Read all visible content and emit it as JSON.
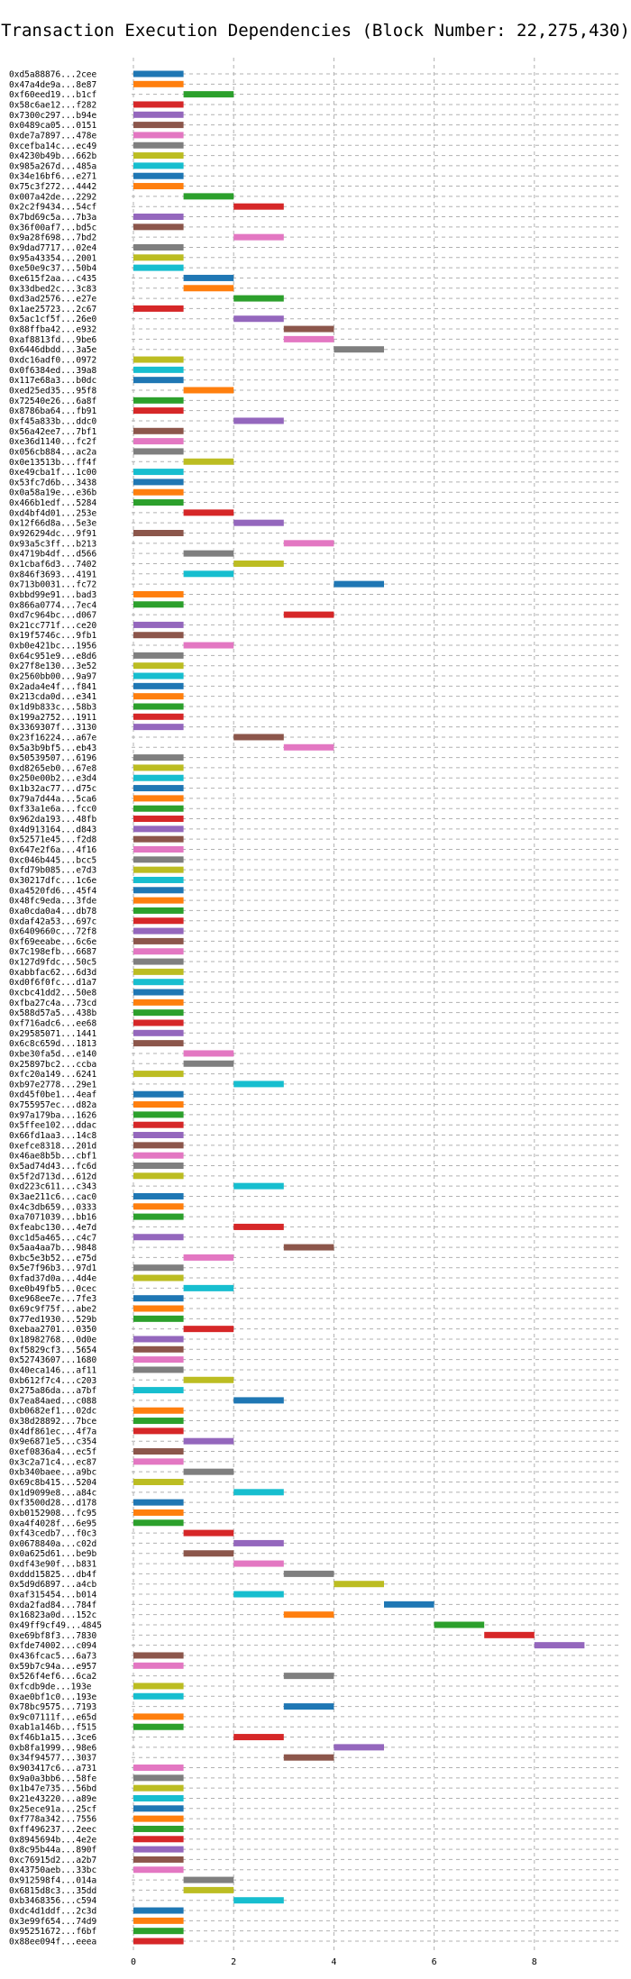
{
  "chart_data": {
    "type": "bar",
    "title": "Transaction Execution Dependencies (Block Number: 22,275,430)",
    "xlabel": "",
    "ylabel": "",
    "xlim": [
      -0.6,
      9.6
    ],
    "xticks": [
      0,
      2,
      4,
      6,
      8
    ],
    "grid": true,
    "palette": [
      "#1f77b4",
      "#ff7f0e",
      "#2ca02c",
      "#d62728",
      "#9467bd",
      "#8c564b",
      "#e377c2",
      "#7f7f7f",
      "#bcbd22",
      "#17becf"
    ],
    "bar_length": 1,
    "transactions": [
      {
        "label": "0xd5a88876...2cee",
        "start": 0
      },
      {
        "label": "0x47a4de9a...8e87",
        "start": 0
      },
      {
        "label": "0xf60eed19...b1cf",
        "start": 1
      },
      {
        "label": "0x58c6ae12...f282",
        "start": 0
      },
      {
        "label": "0x7300c297...b94e",
        "start": 0
      },
      {
        "label": "0x0489ca05...0151",
        "start": 0
      },
      {
        "label": "0xde7a7897...478e",
        "start": 0
      },
      {
        "label": "0xcefba14c...ec49",
        "start": 0
      },
      {
        "label": "0x4230b49b...662b",
        "start": 0
      },
      {
        "label": "0x985a267d...485a",
        "start": 0
      },
      {
        "label": "0x34e16bf6...e271",
        "start": 0
      },
      {
        "label": "0x75c3f272...4442",
        "start": 0
      },
      {
        "label": "0x007a42de...2292",
        "start": 1
      },
      {
        "label": "0x2c2f9434...54cf",
        "start": 2
      },
      {
        "label": "0x7bd69c5a...7b3a",
        "start": 0
      },
      {
        "label": "0x36f00af7...bd5c",
        "start": 0
      },
      {
        "label": "0x9a28f698...7bd2",
        "start": 2
      },
      {
        "label": "0x9dad7717...02e4",
        "start": 0
      },
      {
        "label": "0x95a43354...2001",
        "start": 0
      },
      {
        "label": "0xe50e9c37...50b4",
        "start": 0
      },
      {
        "label": "0xe615f2aa...c435",
        "start": 1
      },
      {
        "label": "0x33dbed2c...3c83",
        "start": 1
      },
      {
        "label": "0xd3ad2576...e27e",
        "start": 2
      },
      {
        "label": "0x1ae25723...2c67",
        "start": 0
      },
      {
        "label": "0x5ac1cf5f...26e0",
        "start": 2
      },
      {
        "label": "0x88ffba42...e932",
        "start": 3
      },
      {
        "label": "0xaf8813fd...9be6",
        "start": 3
      },
      {
        "label": "0x6446dbdd...3a5e",
        "start": 4
      },
      {
        "label": "0xdc16adf0...0972",
        "start": 0
      },
      {
        "label": "0x0f6384ed...39a8",
        "start": 0
      },
      {
        "label": "0x117e68a3...b0dc",
        "start": 0
      },
      {
        "label": "0xed25ed35...95f8",
        "start": 1
      },
      {
        "label": "0x72540e26...6a8f",
        "start": 0
      },
      {
        "label": "0x8786ba64...fb91",
        "start": 0
      },
      {
        "label": "0xf45a833b...ddc0",
        "start": 2
      },
      {
        "label": "0x56a42ee7...7bf1",
        "start": 0
      },
      {
        "label": "0xe36d1140...fc2f",
        "start": 0
      },
      {
        "label": "0x056cb884...ac2a",
        "start": 0
      },
      {
        "label": "0x0e13513b...ff4f",
        "start": 1
      },
      {
        "label": "0xe49cba1f...1c00",
        "start": 0
      },
      {
        "label": "0x53fc7d6b...3438",
        "start": 0
      },
      {
        "label": "0x0a58a19e...e36b",
        "start": 0
      },
      {
        "label": "0x466b1edf...5284",
        "start": 0
      },
      {
        "label": "0xd4bf4d01...253e",
        "start": 1
      },
      {
        "label": "0x12f66d8a...5e3e",
        "start": 2
      },
      {
        "label": "0x926294dc...9f91",
        "start": 0
      },
      {
        "label": "0x93a5c3ff...b213",
        "start": 3
      },
      {
        "label": "0x4719b4df...d566",
        "start": 1
      },
      {
        "label": "0x1cbaf6d3...7402",
        "start": 2
      },
      {
        "label": "0x846f3693...4191",
        "start": 1
      },
      {
        "label": "0x713b0031...fc72",
        "start": 4
      },
      {
        "label": "0xbbd99e91...bad3",
        "start": 0
      },
      {
        "label": "0x866a0774...7ec4",
        "start": 0
      },
      {
        "label": "0xd7c964bc...d067",
        "start": 3
      },
      {
        "label": "0x21cc771f...ce20",
        "start": 0
      },
      {
        "label": "0x19f5746c...9fb1",
        "start": 0
      },
      {
        "label": "0xb0e421bc...1956",
        "start": 1
      },
      {
        "label": "0x64c951e9...e8d6",
        "start": 0
      },
      {
        "label": "0x27f8e130...3e52",
        "start": 0
      },
      {
        "label": "0x2560bb00...9a97",
        "start": 0
      },
      {
        "label": "0x2ada4e4f...f841",
        "start": 0
      },
      {
        "label": "0x213cda0d...e341",
        "start": 0
      },
      {
        "label": "0x1d9b833c...58b3",
        "start": 0
      },
      {
        "label": "0x199a2752...1911",
        "start": 0
      },
      {
        "label": "0x3369307f...3130",
        "start": 0
      },
      {
        "label": "0x23f16224...a67e",
        "start": 2
      },
      {
        "label": "0x5a3b9bf5...eb43",
        "start": 3
      },
      {
        "label": "0x50539507...6196",
        "start": 0
      },
      {
        "label": "0xd8265eb0...67e8",
        "start": 0
      },
      {
        "label": "0x250e00b2...e3d4",
        "start": 0
      },
      {
        "label": "0x1b32ac77...d75c",
        "start": 0
      },
      {
        "label": "0x79a7d44a...5ca6",
        "start": 0
      },
      {
        "label": "0xf33a1e6a...fcc0",
        "start": 0
      },
      {
        "label": "0x962da193...48fb",
        "start": 0
      },
      {
        "label": "0x4d913164...d843",
        "start": 0
      },
      {
        "label": "0x52571e45...f2d8",
        "start": 0
      },
      {
        "label": "0x647e2f6a...4f16",
        "start": 0
      },
      {
        "label": "0xc046b445...bcc5",
        "start": 0
      },
      {
        "label": "0xfd79b085...e7d3",
        "start": 0
      },
      {
        "label": "0x30217dfc...1c6e",
        "start": 0
      },
      {
        "label": "0xa4520fd6...45f4",
        "start": 0
      },
      {
        "label": "0x48fc9eda...3fde",
        "start": 0
      },
      {
        "label": "0xa0cda0a4...db78",
        "start": 0
      },
      {
        "label": "0xdaf42a53...697c",
        "start": 0
      },
      {
        "label": "0x6409660c...72f8",
        "start": 0
      },
      {
        "label": "0xf69eeabe...6c6e",
        "start": 0
      },
      {
        "label": "0x7c198efb...6687",
        "start": 0
      },
      {
        "label": "0x127d9fdc...50c5",
        "start": 0
      },
      {
        "label": "0xabbfac62...6d3d",
        "start": 0
      },
      {
        "label": "0xd0f6f0fc...d1a7",
        "start": 0
      },
      {
        "label": "0xcbc41dd2...50e8",
        "start": 0
      },
      {
        "label": "0xfba27c4a...73cd",
        "start": 0
      },
      {
        "label": "0x588d57a5...438b",
        "start": 0
      },
      {
        "label": "0xf716adc6...ee68",
        "start": 0
      },
      {
        "label": "0x29585071...1441",
        "start": 0
      },
      {
        "label": "0x6c8c659d...1813",
        "start": 0
      },
      {
        "label": "0xbe30fa5d...e140",
        "start": 1
      },
      {
        "label": "0x25897bc2...ccba",
        "start": 1
      },
      {
        "label": "0xfc20a149...6241",
        "start": 0
      },
      {
        "label": "0xb97e2778...29e1",
        "start": 2
      },
      {
        "label": "0xd45f0be1...4eaf",
        "start": 0
      },
      {
        "label": "0x755957ec...d82a",
        "start": 0
      },
      {
        "label": "0x97a179ba...1626",
        "start": 0
      },
      {
        "label": "0x5ffee102...ddac",
        "start": 0
      },
      {
        "label": "0x66fd1aa3...14c8",
        "start": 0
      },
      {
        "label": "0xefce8318...201d",
        "start": 0
      },
      {
        "label": "0x46ae8b5b...cbf1",
        "start": 0
      },
      {
        "label": "0x5ad74d43...fc6d",
        "start": 0
      },
      {
        "label": "0x5f2d713d...612d",
        "start": 0
      },
      {
        "label": "0xd223c611...c343",
        "start": 2
      },
      {
        "label": "0x3ae211c6...cac0",
        "start": 0
      },
      {
        "label": "0x4c3db659...0333",
        "start": 0
      },
      {
        "label": "0xa7071039...bb16",
        "start": 0
      },
      {
        "label": "0xfeabc130...4e7d",
        "start": 2
      },
      {
        "label": "0xc1d5a465...c4c7",
        "start": 0
      },
      {
        "label": "0x5aa4aa7b...9848",
        "start": 3
      },
      {
        "label": "0xbc5e3b52...e75d",
        "start": 1
      },
      {
        "label": "0x5e7f96b3...97d1",
        "start": 0
      },
      {
        "label": "0xfad37d0a...4d4e",
        "start": 0
      },
      {
        "label": "0xe0b49fb5...0cec",
        "start": 1
      },
      {
        "label": "0xe968ee7e...7fe3",
        "start": 0
      },
      {
        "label": "0x69c9f75f...abe2",
        "start": 0
      },
      {
        "label": "0x77ed1930...529b",
        "start": 0
      },
      {
        "label": "0xebaa2701...0350",
        "start": 1
      },
      {
        "label": "0x18982768...0d0e",
        "start": 0
      },
      {
        "label": "0xf5829cf3...5654",
        "start": 0
      },
      {
        "label": "0x52743607...1680",
        "start": 0
      },
      {
        "label": "0x40eca146...af11",
        "start": 0
      },
      {
        "label": "0xb612f7c4...c203",
        "start": 1
      },
      {
        "label": "0x275a86da...a7bf",
        "start": 0
      },
      {
        "label": "0x7ea84aed...c088",
        "start": 2
      },
      {
        "label": "0xb0682ef1...02dc",
        "start": 0
      },
      {
        "label": "0x38d28892...7bce",
        "start": 0
      },
      {
        "label": "0x4df861ec...4f7a",
        "start": 0
      },
      {
        "label": "0x9e6871e5...c354",
        "start": 1
      },
      {
        "label": "0xef0836a4...ec5f",
        "start": 0
      },
      {
        "label": "0x3c2a71c4...ec87",
        "start": 0
      },
      {
        "label": "0xb340baee...a9bc",
        "start": 1
      },
      {
        "label": "0x69c8b415...5204",
        "start": 0
      },
      {
        "label": "0x1d9099e8...a84c",
        "start": 2
      },
      {
        "label": "0xf3500d28...d178",
        "start": 0
      },
      {
        "label": "0xb0152908...fc95",
        "start": 0
      },
      {
        "label": "0xa4f4028f...6e95",
        "start": 0
      },
      {
        "label": "0xf43cedb7...f0c3",
        "start": 1
      },
      {
        "label": "0x0678840a...c02d",
        "start": 2
      },
      {
        "label": "0x0a625d61...be9b",
        "start": 1
      },
      {
        "label": "0xdf43e90f...b831",
        "start": 2
      },
      {
        "label": "0xddd15825...db4f",
        "start": 3
      },
      {
        "label": "0x5d9d6897...a4cb",
        "start": 4
      },
      {
        "label": "0xaf315454...b014",
        "start": 2
      },
      {
        "label": "0xda2fad84...784f",
        "start": 5
      },
      {
        "label": "0x16823a0d...152c",
        "start": 3
      },
      {
        "label": "0x49ff9cf49...4845",
        "start": 6
      },
      {
        "label": "0xe69bf8f3...7830",
        "start": 7
      },
      {
        "label": "0xfde74002...c094",
        "start": 8
      },
      {
        "label": "0x436fcac5...6a73",
        "start": 0
      },
      {
        "label": "0x59b7c94a...e957",
        "start": 0
      },
      {
        "label": "0x526f4ef6...6ca2",
        "start": 3
      },
      {
        "label": "0xfcdb9de...193e",
        "start": 0
      },
      {
        "label": "0xae0bf1c0...193e",
        "start": 0
      },
      {
        "label": "0x78bc9575...7193",
        "start": 3
      },
      {
        "label": "0x9c07111f...e65d",
        "start": 0
      },
      {
        "label": "0xab1a146b...f515",
        "start": 0
      },
      {
        "label": "0xf46b1a15...3ce6",
        "start": 2
      },
      {
        "label": "0xb8fa1999...98e6",
        "start": 4
      },
      {
        "label": "0x34f94577...3037",
        "start": 3
      },
      {
        "label": "0x903417c6...a731",
        "start": 0
      },
      {
        "label": "0x9a0a3bb6...58fe",
        "start": 0
      },
      {
        "label": "0x1b47e735...56bd",
        "start": 0
      },
      {
        "label": "0x21e43220...a89e",
        "start": 0
      },
      {
        "label": "0x25ece91a...25cf",
        "start": 0
      },
      {
        "label": "0xf778a342...7556",
        "start": 0
      },
      {
        "label": "0xff496237...2eec",
        "start": 0
      },
      {
        "label": "0x8945694b...4e2e",
        "start": 0
      },
      {
        "label": "0x8c95b44a...890f",
        "start": 0
      },
      {
        "label": "0xc76915d2...a2b7",
        "start": 0
      },
      {
        "label": "0x43750aeb...33bc",
        "start": 0
      },
      {
        "label": "0x912598f4...014a",
        "start": 1
      },
      {
        "label": "0x6815d8c3...35dd",
        "start": 1
      },
      {
        "label": "0xb3468356...c594",
        "start": 2
      },
      {
        "label": "0xdc4d1ddf...2c3d",
        "start": 0
      },
      {
        "label": "0x3e99f654...74d9",
        "start": 0
      },
      {
        "label": "0x95251672...f6bf",
        "start": 0
      },
      {
        "label": "0x88ee094f...eeea",
        "start": 0
      }
    ]
  }
}
